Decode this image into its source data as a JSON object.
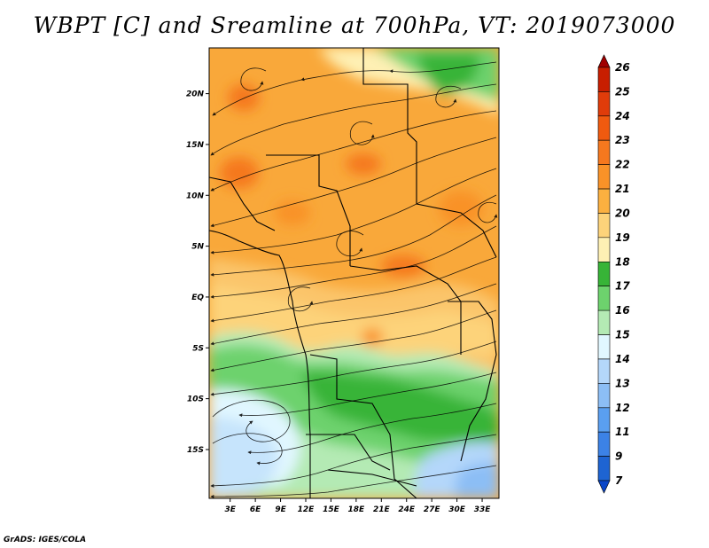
{
  "title": "WBPT [C] and Sreamline at 700hPa, VT: 2019073000",
  "footer": "GrADS: IGES/COLA",
  "map": {
    "lat_labels": [
      "20N",
      "15N",
      "10N",
      "5N",
      "EQ",
      "5S",
      "10S",
      "15S"
    ],
    "lat_values": [
      20,
      15,
      10,
      5,
      0,
      -5,
      -10,
      -15
    ],
    "lon_labels": [
      "3E",
      "6E",
      "9E",
      "12E",
      "15E",
      "18E",
      "21E",
      "24E",
      "27E",
      "30E",
      "33E"
    ],
    "lon_values": [
      3,
      6,
      9,
      12,
      15,
      18,
      21,
      24,
      27,
      30,
      33
    ],
    "lon_range": [
      0.5,
      35
    ],
    "lat_range": [
      -19.8,
      24.5
    ]
  },
  "colorbar": {
    "labels": [
      "26",
      "25",
      "24",
      "23",
      "22",
      "21",
      "20",
      "19",
      "18",
      "17",
      "16",
      "15",
      "14",
      "13",
      "12",
      "11",
      "9",
      "7"
    ],
    "colors": [
      "#a00000",
      "#c81e00",
      "#e03c0a",
      "#f05a0f",
      "#f5781e",
      "#f99228",
      "#fbb040",
      "#fdd37a",
      "#fef0b4",
      "#37b437",
      "#6dd26d",
      "#b4eab4",
      "#e1f7ff",
      "#b4d7fa",
      "#8cbef5",
      "#5a9ff0",
      "#3c82e6",
      "#1e64d2",
      "#0a46c8"
    ]
  }
}
